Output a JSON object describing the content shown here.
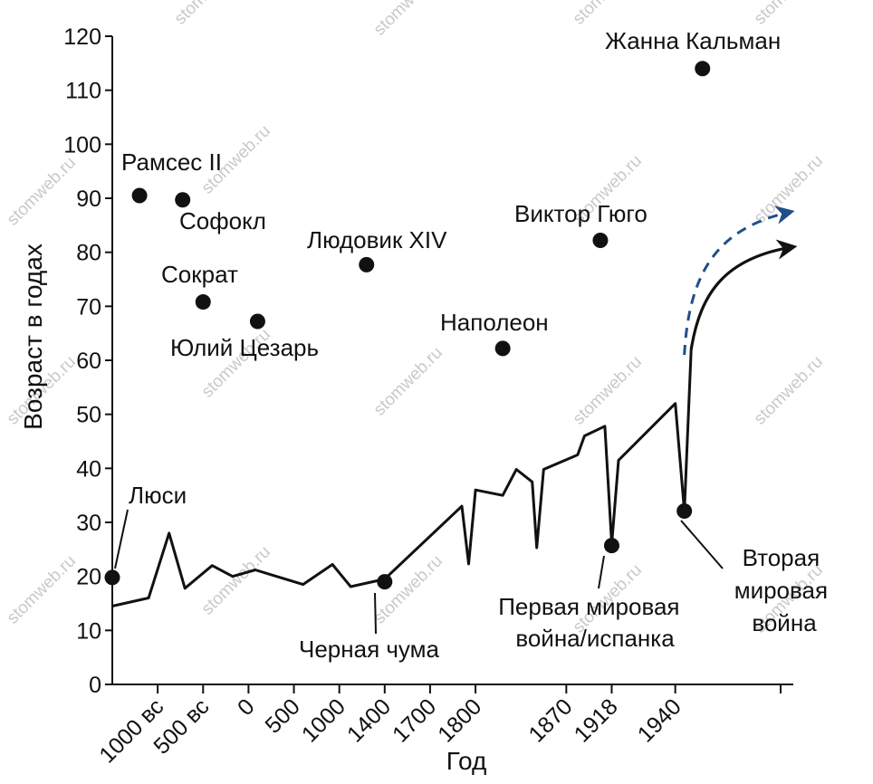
{
  "chart_data": {
    "type": "line",
    "xlabel": "Год",
    "ylabel": "Возраст в годах",
    "ylim": [
      0,
      120
    ],
    "yticks": [
      0,
      10,
      20,
      30,
      40,
      50,
      60,
      70,
      80,
      90,
      100,
      110,
      120
    ],
    "xticks": [
      {
        "label": "1000 вс",
        "pos": 1.0
      },
      {
        "label": "500 вс",
        "pos": 2.0
      },
      {
        "label": "0",
        "pos": 3.0
      },
      {
        "label": "500",
        "pos": 4.0
      },
      {
        "label": "1000",
        "pos": 5.0
      },
      {
        "label": "1400",
        "pos": 6.0
      },
      {
        "label": "1700",
        "pos": 7.0
      },
      {
        "label": "1800",
        "pos": 8.0
      },
      {
        "label": "1870",
        "pos": 10.0
      },
      {
        "label": "1918",
        "pos": 11.0
      },
      {
        "label": "1940",
        "pos": 12.4
      }
    ],
    "xlim": [
      0,
      15
    ],
    "life_expectancy_line": [
      [
        0.0,
        14.5
      ],
      [
        0.8,
        16
      ],
      [
        1.25,
        28
      ],
      [
        1.6,
        17.8
      ],
      [
        2.2,
        22
      ],
      [
        2.65,
        20
      ],
      [
        3.15,
        21.2
      ],
      [
        4.2,
        18.5
      ],
      [
        4.85,
        22.2
      ],
      [
        5.25,
        18.1
      ],
      [
        6.0,
        19.5
      ],
      [
        7.7,
        33
      ],
      [
        7.85,
        22.3
      ],
      [
        8.0,
        36
      ],
      [
        8.6,
        35
      ],
      [
        8.9,
        39.8
      ],
      [
        9.25,
        37.5
      ],
      [
        9.35,
        25.3
      ],
      [
        9.5,
        39.8
      ],
      [
        10.25,
        42.5
      ],
      [
        10.4,
        46
      ],
      [
        10.85,
        47.8
      ],
      [
        11.0,
        26
      ],
      [
        11.15,
        41.5
      ],
      [
        12.4,
        52
      ],
      [
        12.6,
        32.1
      ],
      [
        12.75,
        62
      ]
    ],
    "projection_solid": [
      [
        12.75,
        62
      ],
      [
        12.95,
        72.5
      ],
      [
        13.5,
        79
      ],
      [
        15.0,
        81
      ]
    ],
    "projection_dashed": [
      [
        12.6,
        61
      ],
      [
        12.7,
        76
      ],
      [
        13.3,
        84.5
      ],
      [
        14.95,
        87.5
      ]
    ],
    "points": [
      {
        "label": "Люси",
        "x": 0.0,
        "y": 19.8
      },
      {
        "label": "Рамсес II",
        "x": 0.6,
        "y": 90.5
      },
      {
        "label": "Софокл",
        "x": 1.55,
        "y": 89.7
      },
      {
        "label": "Сократ",
        "x": 2.0,
        "y": 70.8
      },
      {
        "label": "Юлий Цезарь",
        "x": 3.2,
        "y": 67.2
      },
      {
        "label": "Людовик XIV",
        "x": 5.6,
        "y": 77.7
      },
      {
        "label": "Черная чума",
        "x": 6.0,
        "y": 19.0
      },
      {
        "label": "Наполеон",
        "x": 8.6,
        "y": 62.2
      },
      {
        "label": "Виктор Гюго",
        "x": 10.75,
        "y": 82.2
      },
      {
        "label": "Первая мировая война/испанка",
        "x": 11.0,
        "y": 25.7
      },
      {
        "label": "Вторая мировая война",
        "x": 12.6,
        "y": 32.1
      },
      {
        "label": "Жанна Кальман",
        "x": 13.0,
        "y": 114.0
      }
    ],
    "colors": {
      "line": "#111111",
      "projection_dashed": "#1f4e8c",
      "points": "#111111"
    }
  },
  "annotations": {
    "lucy": "Люси",
    "ramses": "Рамсес II",
    "sophocles": "Софокл",
    "socrates": "Сократ",
    "caesar": "Юлий Цезарь",
    "louis": "Людовик XIV",
    "plague": "Черная чума",
    "napoleon": "Наполеон",
    "hugo": "Виктор Гюго",
    "ww1_line1": "Первая мировая",
    "ww1_line2": "война/испанка",
    "ww2_line1": "Вторая",
    "ww2_line2": "мировая",
    "ww2_line3": "война",
    "calment": "Жанна Кальман"
  },
  "watermark": "stomweb.ru"
}
